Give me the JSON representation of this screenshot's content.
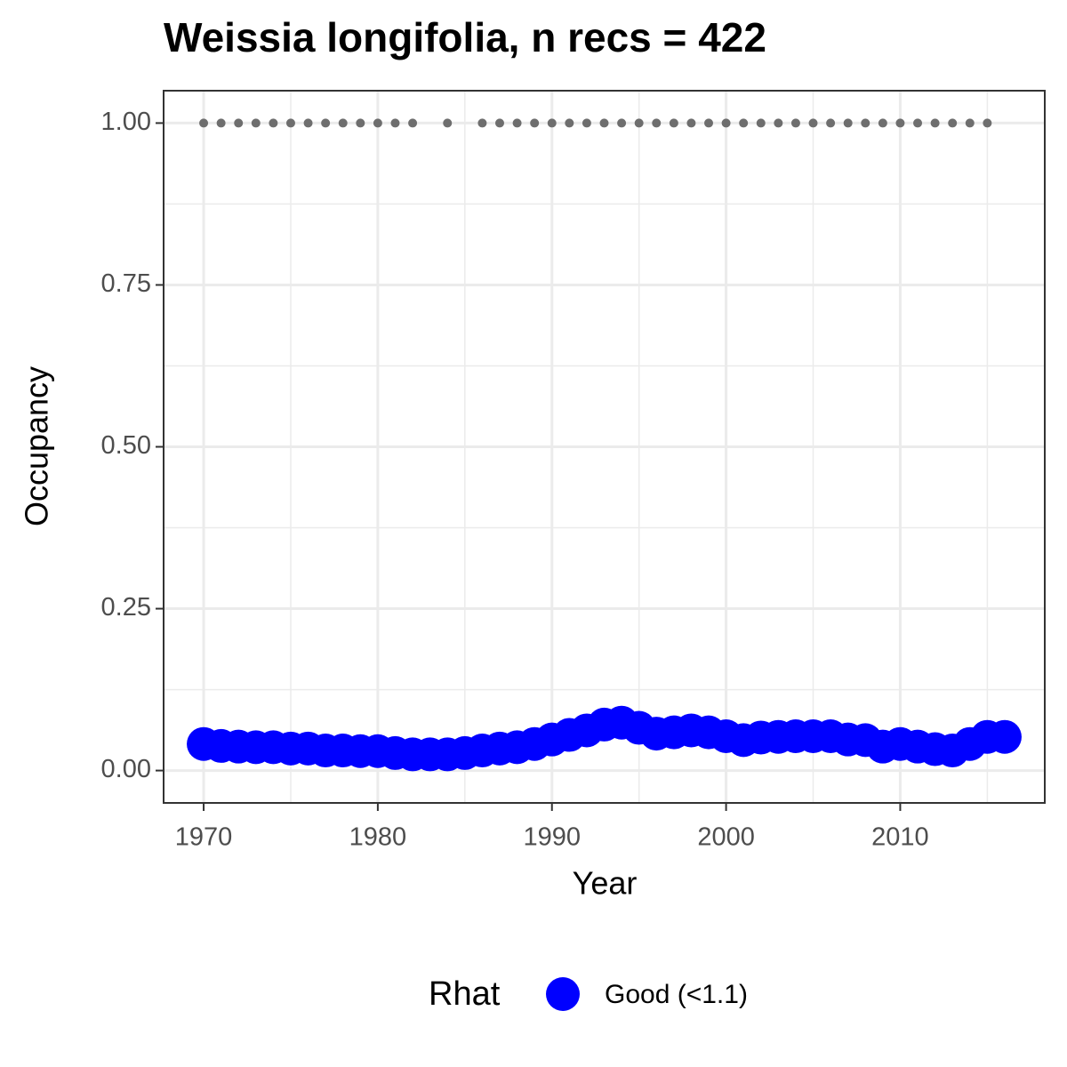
{
  "chart_data": {
    "type": "scatter",
    "title": "Weissia longifolia, n recs = 422",
    "x_label": "Year",
    "y_label": "Occupancy",
    "legend_title": "Rhat",
    "x": [
      1970,
      1971,
      1972,
      1973,
      1974,
      1975,
      1976,
      1977,
      1978,
      1979,
      1980,
      1981,
      1982,
      1983,
      1984,
      1985,
      1986,
      1987,
      1988,
      1989,
      1990,
      1991,
      1992,
      1993,
      1994,
      1995,
      1996,
      1997,
      1998,
      1999,
      2000,
      2001,
      2002,
      2003,
      2004,
      2005,
      2006,
      2007,
      2008,
      2009,
      2010,
      2011,
      2012,
      2013,
      2014,
      2015,
      2016
    ],
    "series": [
      {
        "name": "Good (<1.1)",
        "color": "#0000ff",
        "values": [
          0.041,
          0.038,
          0.037,
          0.036,
          0.036,
          0.034,
          0.034,
          0.031,
          0.031,
          0.03,
          0.03,
          0.027,
          0.025,
          0.025,
          0.025,
          0.027,
          0.031,
          0.034,
          0.036,
          0.041,
          0.048,
          0.055,
          0.062,
          0.071,
          0.074,
          0.066,
          0.057,
          0.059,
          0.062,
          0.059,
          0.053,
          0.047,
          0.051,
          0.052,
          0.053,
          0.053,
          0.053,
          0.048,
          0.047,
          0.037,
          0.041,
          0.037,
          0.033,
          0.031,
          0.041,
          0.052,
          0.052
        ]
      }
    ],
    "observations": {
      "color": "#6e6e6e",
      "x": [
        1970,
        1971,
        1972,
        1973,
        1974,
        1975,
        1976,
        1977,
        1978,
        1979,
        1980,
        1981,
        1982,
        1984,
        1986,
        1987,
        1988,
        1989,
        1990,
        1991,
        1992,
        1993,
        1994,
        1995,
        1996,
        1997,
        1998,
        1999,
        2000,
        2001,
        2002,
        2003,
        2004,
        2005,
        2006,
        2007,
        2008,
        2009,
        2010,
        2011,
        2012,
        2013,
        2014,
        2015
      ],
      "values": [
        1,
        1,
        1,
        1,
        1,
        1,
        1,
        1,
        1,
        1,
        1,
        1,
        1,
        1,
        1,
        1,
        1,
        1,
        1,
        1,
        1,
        1,
        1,
        1,
        1,
        1,
        1,
        1,
        1,
        1,
        1,
        1,
        1,
        1,
        1,
        1,
        1,
        1,
        1,
        1,
        1,
        1,
        1,
        1
      ]
    },
    "xlim": [
      1967.7,
      2018.3
    ],
    "ylim": [
      -0.05,
      1.05
    ],
    "xticks": [
      1970,
      1980,
      1990,
      2000,
      2010
    ],
    "yticks": [
      {
        "value": 0,
        "label": "0.00"
      },
      {
        "value": 0.25,
        "label": "0.25"
      },
      {
        "value": 0.5,
        "label": "0.50"
      },
      {
        "value": 0.75,
        "label": "0.75"
      },
      {
        "value": 1,
        "label": "1.00"
      }
    ],
    "xminor": [
      1975,
      1985,
      1995,
      2005,
      2015
    ],
    "yminor": [
      0.125,
      0.375,
      0.625,
      0.875
    ],
    "grid": true
  }
}
